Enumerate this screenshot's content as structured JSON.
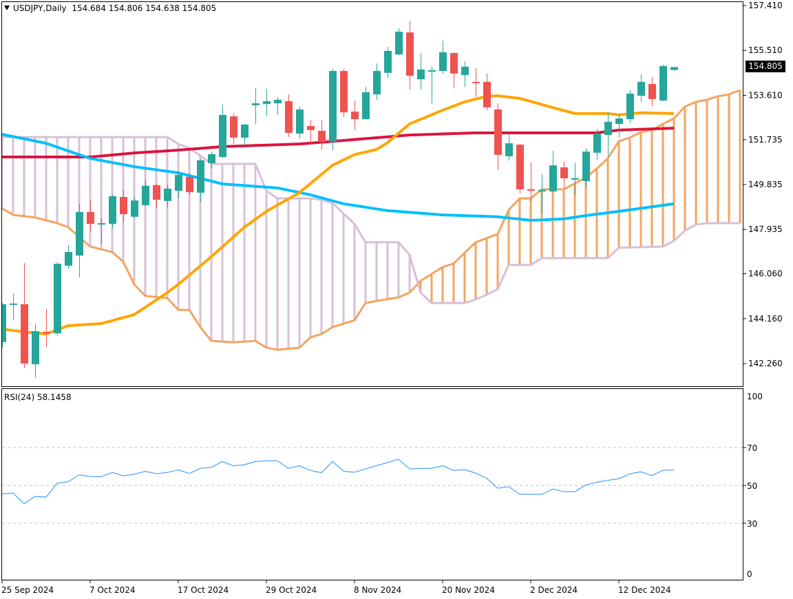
{
  "header": {
    "symbol_timeframe": "USDJPY,Daily",
    "open": "154.684",
    "high": "154.806",
    "low": "154.638",
    "close": "154.805",
    "collapse_icon": "triangle-down-icon"
  },
  "last_price_label": "154.805",
  "rsi_panel": {
    "label": "RSI(24)",
    "value": "58.1458"
  },
  "colors": {
    "bull": "#26A69A",
    "bear": "#EF5350",
    "ma_red": "#DC143C",
    "ma_cyan": "#00BFFF",
    "ma_orange": "#FFA500",
    "span_a": "#F4A460",
    "span_b": "#D8BFD8",
    "rsi": "#1E90FF"
  },
  "chart_data": [
    {
      "type": "candlestick",
      "title": "USDJPY,Daily",
      "ylim": [
        142.26,
        157.41
      ],
      "y_ticks": [
        "157.410",
        "155.510",
        "153.610",
        "151.735",
        "149.835",
        "147.935",
        "146.060",
        "144.160",
        "142.260"
      ],
      "x_ticks": [
        {
          "bar": 0,
          "label": "25 Sep 2024"
        },
        {
          "bar": 8,
          "label": "7 Oct 2024"
        },
        {
          "bar": 16,
          "label": "17 Oct 2024"
        },
        {
          "bar": 24,
          "label": "29 Oct 2024"
        },
        {
          "bar": 32,
          "label": "8 Nov 2024"
        },
        {
          "bar": 40,
          "label": "20 Nov 2024"
        },
        {
          "bar": 48,
          "label": "2 Dec 2024"
        },
        {
          "bar": 56,
          "label": "12 Dec 2024"
        }
      ],
      "ohlc": [
        [
          143.17,
          144.82,
          142.93,
          144.77
        ],
        [
          144.74,
          145.23,
          144.09,
          144.8
        ],
        [
          144.77,
          146.51,
          142.06,
          142.26
        ],
        [
          142.23,
          143.95,
          141.65,
          143.63
        ],
        [
          143.6,
          144.56,
          142.96,
          143.54
        ],
        [
          143.54,
          146.54,
          143.45,
          146.48
        ],
        [
          146.4,
          147.27,
          146.28,
          146.98
        ],
        [
          146.83,
          149.02,
          145.9,
          148.67
        ],
        [
          148.67,
          149.16,
          147.85,
          148.17
        ],
        [
          148.14,
          148.41,
          147.33,
          148.2
        ],
        [
          148.17,
          149.4,
          147.99,
          149.34
        ],
        [
          149.31,
          149.6,
          148.23,
          148.58
        ],
        [
          148.47,
          149.31,
          148.41,
          149.16
        ],
        [
          148.96,
          150.01,
          148.9,
          149.78
        ],
        [
          149.81,
          149.87,
          148.84,
          149.19
        ],
        [
          149.14,
          149.84,
          148.87,
          149.66
        ],
        [
          149.57,
          150.36,
          149.25,
          150.24
        ],
        [
          150.16,
          150.3,
          149.37,
          149.51
        ],
        [
          149.49,
          150.91,
          149.08,
          150.86
        ],
        [
          150.74,
          151.23,
          150.51,
          151.12
        ],
        [
          151.0,
          153.22,
          150.97,
          152.78
        ],
        [
          152.72,
          152.86,
          151.55,
          151.82
        ],
        [
          151.82,
          152.4,
          151.47,
          152.37
        ],
        [
          153.19,
          153.91,
          152.4,
          153.27
        ],
        [
          153.24,
          153.88,
          152.75,
          153.36
        ],
        [
          153.27,
          153.54,
          152.78,
          153.42
        ],
        [
          153.36,
          153.65,
          151.85,
          152.02
        ],
        [
          151.99,
          153.13,
          151.79,
          153.01
        ],
        [
          152.31,
          152.57,
          151.52,
          152.14
        ],
        [
          152.11,
          152.57,
          151.32,
          151.64
        ],
        [
          151.64,
          154.73,
          151.29,
          154.64
        ],
        [
          154.64,
          154.73,
          152.69,
          152.89
        ],
        [
          152.92,
          153.39,
          152.14,
          152.6
        ],
        [
          152.6,
          153.97,
          152.6,
          153.74
        ],
        [
          153.65,
          154.96,
          153.42,
          154.64
        ],
        [
          154.56,
          155.66,
          154.35,
          155.49
        ],
        [
          155.34,
          156.45,
          155.31,
          156.3
        ],
        [
          156.27,
          156.77,
          153.86,
          154.44
        ],
        [
          154.29,
          155.4,
          153.86,
          154.7
        ],
        [
          154.61,
          154.82,
          153.27,
          154.67
        ],
        [
          154.64,
          155.92,
          154.53,
          155.43
        ],
        [
          155.4,
          155.43,
          153.91,
          154.53
        ],
        [
          154.47,
          155.05,
          153.97,
          154.82
        ],
        [
          154.18,
          154.76,
          153.54,
          154.15
        ],
        [
          154.18,
          154.53,
          152.98,
          153.1
        ],
        [
          153.01,
          153.27,
          150.45,
          151.09
        ],
        [
          151.03,
          151.96,
          150.85,
          151.58
        ],
        [
          151.52,
          151.55,
          149.46,
          149.63
        ],
        [
          149.63,
          150.77,
          149.11,
          149.6
        ],
        [
          149.54,
          150.27,
          148.64,
          149.6
        ],
        [
          149.54,
          151.26,
          149.51,
          150.65
        ],
        [
          150.56,
          150.8,
          149.66,
          150.1
        ],
        [
          150.04,
          150.74,
          149.4,
          150.1
        ],
        [
          149.98,
          151.38,
          149.69,
          151.23
        ],
        [
          151.18,
          152.19,
          150.88,
          151.99
        ],
        [
          151.93,
          152.89,
          151.0,
          152.49
        ],
        [
          152.4,
          152.81,
          151.82,
          152.63
        ],
        [
          152.6,
          153.83,
          152.46,
          153.68
        ],
        [
          153.59,
          154.5,
          153.33,
          154.18
        ],
        [
          154.09,
          154.38,
          153.16,
          153.45
        ],
        [
          153.39,
          154.9,
          153.36,
          154.85
        ],
        [
          154.684,
          154.806,
          154.638,
          154.805
        ]
      ],
      "moving_averages": [
        {
          "name": "ma-red",
          "color_key": "ma_red",
          "knots": [
            [
              0,
              151.0
            ],
            [
              8,
              151.0
            ],
            [
              12,
              151.17
            ],
            [
              16,
              151.29
            ],
            [
              20,
              151.44
            ],
            [
              27,
              151.55
            ],
            [
              31,
              151.7
            ],
            [
              37,
              151.93
            ],
            [
              43,
              152.02
            ],
            [
              54,
              152.02
            ],
            [
              56,
              152.14
            ],
            [
              61,
              152.22
            ]
          ]
        },
        {
          "name": "ma-cyan",
          "color_key": "ma_cyan",
          "knots": [
            [
              0,
              151.96
            ],
            [
              4,
              151.58
            ],
            [
              8,
              150.94
            ],
            [
              12,
              150.59
            ],
            [
              16,
              150.33
            ],
            [
              20,
              149.86
            ],
            [
              25,
              149.69
            ],
            [
              28,
              149.4
            ],
            [
              31,
              149.02
            ],
            [
              35,
              148.73
            ],
            [
              40,
              148.55
            ],
            [
              45,
              148.47
            ],
            [
              48,
              148.32
            ],
            [
              51,
              148.38
            ],
            [
              53,
              148.52
            ],
            [
              56,
              148.7
            ],
            [
              61,
              149.02
            ]
          ]
        },
        {
          "name": "ma-orange",
          "color_key": "ma_orange",
          "knots": [
            [
              0,
              143.72
            ],
            [
              2,
              143.6
            ],
            [
              4,
              143.51
            ],
            [
              6,
              143.86
            ],
            [
              9,
              143.95
            ],
            [
              12,
              144.33
            ],
            [
              15,
              145.26
            ],
            [
              16,
              145.61
            ],
            [
              19,
              146.78
            ],
            [
              22,
              148.03
            ],
            [
              24,
              148.7
            ],
            [
              27,
              149.49
            ],
            [
              30,
              150.65
            ],
            [
              32,
              151.1
            ],
            [
              34,
              151.32
            ],
            [
              35,
              151.61
            ],
            [
              37,
              152.4
            ],
            [
              40,
              152.98
            ],
            [
              42,
              153.33
            ],
            [
              44,
              153.57
            ],
            [
              45,
              153.59
            ],
            [
              47,
              153.48
            ],
            [
              49,
              153.22
            ],
            [
              52,
              152.84
            ],
            [
              55,
              152.84
            ],
            [
              56,
              152.78
            ],
            [
              58,
              152.87
            ],
            [
              61,
              152.84
            ]
          ]
        }
      ],
      "ichimoku": {
        "bars": 68,
        "span_a": [
          [
            0,
            148.82
          ],
          [
            1,
            148.55
          ],
          [
            3,
            148.44
          ],
          [
            5,
            148.2
          ],
          [
            6,
            148.03
          ],
          [
            8,
            147.21
          ],
          [
            10,
            146.98
          ],
          [
            11,
            146.57
          ],
          [
            12,
            145.61
          ],
          [
            13,
            145.12
          ],
          [
            15,
            145.03
          ],
          [
            16,
            144.53
          ],
          [
            17,
            144.53
          ],
          [
            18,
            143.8
          ],
          [
            19,
            143.22
          ],
          [
            21,
            143.16
          ],
          [
            23,
            143.22
          ],
          [
            24,
            142.93
          ],
          [
            25,
            142.84
          ],
          [
            27,
            142.93
          ],
          [
            28,
            143.37
          ],
          [
            29,
            143.51
          ],
          [
            30,
            143.8
          ],
          [
            32,
            144.09
          ],
          [
            33,
            144.82
          ],
          [
            34,
            144.91
          ],
          [
            36,
            145.06
          ],
          [
            37,
            145.26
          ],
          [
            38,
            145.76
          ],
          [
            40,
            146.34
          ],
          [
            41,
            146.49
          ],
          [
            42,
            146.95
          ],
          [
            43,
            147.39
          ],
          [
            45,
            147.74
          ],
          [
            46,
            148.76
          ],
          [
            47,
            149.25
          ],
          [
            48,
            149.25
          ],
          [
            49,
            149.63
          ],
          [
            51,
            149.63
          ],
          [
            53,
            150.13
          ],
          [
            54,
            150.51
          ],
          [
            55,
            150.94
          ],
          [
            56,
            151.67
          ],
          [
            57,
            151.82
          ],
          [
            58,
            152.05
          ],
          [
            59,
            152.14
          ],
          [
            60,
            152.4
          ],
          [
            61,
            152.63
          ],
          [
            62,
            153.13
          ],
          [
            63,
            153.33
          ],
          [
            64,
            153.42
          ],
          [
            65,
            153.57
          ],
          [
            66,
            153.65
          ],
          [
            67,
            153.83
          ]
        ],
        "span_b": [
          [
            0,
            151.84
          ],
          [
            15,
            151.84
          ],
          [
            16,
            151.55
          ],
          [
            17,
            151.38
          ],
          [
            18,
            151.06
          ],
          [
            19,
            150.71
          ],
          [
            23,
            150.71
          ],
          [
            24,
            149.57
          ],
          [
            25,
            149.25
          ],
          [
            28,
            149.25
          ],
          [
            29,
            149.19
          ],
          [
            30,
            149.05
          ],
          [
            31,
            148.61
          ],
          [
            32,
            148.17
          ],
          [
            33,
            147.39
          ],
          [
            36,
            147.39
          ],
          [
            37,
            146.86
          ],
          [
            38,
            145.26
          ],
          [
            39,
            144.82
          ],
          [
            42,
            144.82
          ],
          [
            43,
            144.97
          ],
          [
            44,
            145.17
          ],
          [
            45,
            145.41
          ],
          [
            46,
            146.43
          ],
          [
            48,
            146.43
          ],
          [
            49,
            146.72
          ],
          [
            55,
            146.72
          ],
          [
            56,
            147.16
          ],
          [
            60,
            147.21
          ],
          [
            61,
            147.45
          ],
          [
            62,
            147.88
          ],
          [
            63,
            148.14
          ],
          [
            64,
            148.2
          ],
          [
            67,
            148.2
          ]
        ]
      }
    },
    {
      "type": "line",
      "title": "RSI(24)",
      "ylim": [
        0,
        100
      ],
      "y_ticks": [
        "100",
        "70",
        "50",
        "30",
        "0"
      ],
      "levels": [
        70,
        50,
        30
      ],
      "values": [
        45.5,
        46.0,
        40.3,
        44.2,
        43.8,
        51.1,
        51.9,
        55.6,
        54.7,
        54.6,
        56.8,
        55.1,
        55.9,
        57.4,
        56.2,
        56.8,
        58.2,
        56.3,
        59.0,
        59.5,
        62.6,
        60.3,
        60.9,
        62.6,
        63.0,
        63.0,
        59.0,
        60.4,
        57.9,
        56.7,
        62.6,
        57.5,
        56.9,
        58.7,
        60.4,
        62.1,
        63.8,
        58.7,
        59.0,
        59.0,
        60.4,
        57.9,
        58.3,
        56.5,
        53.8,
        48.5,
        49.4,
        45.3,
        45.3,
        45.3,
        48.1,
        46.7,
        46.7,
        50.2,
        51.7,
        52.7,
        53.5,
        56.1,
        57.2,
        55.1,
        58.0,
        58.1458
      ]
    }
  ]
}
